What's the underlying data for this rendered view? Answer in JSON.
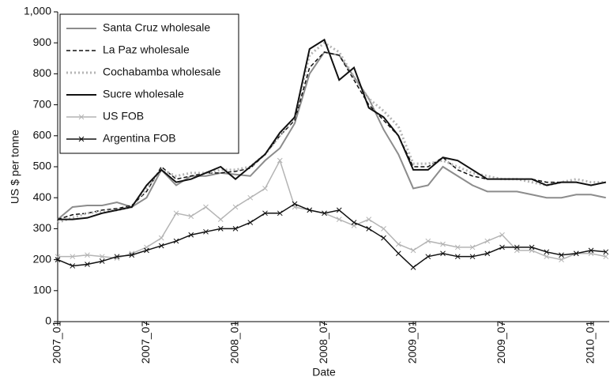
{
  "chart_data": {
    "type": "line",
    "x_label": "Date",
    "y_label": "US $ per tonne",
    "categories": [
      "2007_01",
      null,
      null,
      null,
      null,
      null,
      "2007_07",
      null,
      null,
      null,
      null,
      null,
      "2008_01",
      null,
      null,
      null,
      null,
      null,
      "2008_07",
      null,
      null,
      null,
      null,
      null,
      "2009_01",
      null,
      null,
      null,
      null,
      null,
      "2009_07",
      null,
      null,
      null,
      null,
      null,
      "2010_01",
      null
    ],
    "ylim": [
      0,
      1000
    ],
    "yticks": [
      0,
      100,
      200,
      300,
      400,
      500,
      600,
      700,
      800,
      900,
      {
        "value": 1000,
        "label": "1,000"
      }
    ],
    "legend": "top-left",
    "series": [
      {
        "name": "Santa Cruz wholesale",
        "color": "#8c8c8c",
        "dash": "solid",
        "width": 2,
        "values": [
          330,
          370,
          375,
          375,
          385,
          370,
          400,
          490,
          440,
          470,
          470,
          480,
          475,
          470,
          520,
          560,
          640,
          800,
          870,
          860,
          790,
          720,
          620,
          540,
          430,
          440,
          500,
          470,
          440,
          420,
          420,
          420,
          410,
          400,
          400,
          410,
          410,
          400
        ]
      },
      {
        "name": "La Paz wholesale",
        "color": "#111111",
        "dash": "dashed",
        "width": 1.5,
        "values": [
          330,
          345,
          350,
          360,
          365,
          375,
          420,
          500,
          460,
          470,
          480,
          480,
          485,
          495,
          540,
          600,
          650,
          820,
          870,
          860,
          780,
          700,
          650,
          600,
          500,
          500,
          530,
          490,
          470,
          460,
          460,
          460,
          460,
          450,
          450,
          450,
          440,
          450
        ]
      },
      {
        "name": "Cochabamba wholesale",
        "color": "#b4b4b4",
        "dash": "dotted",
        "width": 3,
        "values": [
          320,
          335,
          350,
          355,
          360,
          370,
          430,
          490,
          470,
          480,
          480,
          490,
          490,
          500,
          540,
          600,
          660,
          860,
          900,
          870,
          790,
          720,
          680,
          630,
          510,
          510,
          520,
          500,
          480,
          470,
          460,
          460,
          450,
          440,
          450,
          460,
          450,
          450
        ]
      },
      {
        "name": "Sucre wholesale",
        "color": "#111111",
        "dash": "solid",
        "width": 2,
        "values": [
          330,
          330,
          335,
          350,
          360,
          370,
          440,
          490,
          450,
          460,
          480,
          500,
          460,
          500,
          540,
          610,
          660,
          880,
          910,
          780,
          820,
          690,
          660,
          600,
          490,
          490,
          530,
          520,
          490,
          460,
          460,
          460,
          460,
          440,
          450,
          450,
          440,
          450
        ]
      },
      {
        "name": "US FOB",
        "color": "#b4b4b4",
        "dash": "solid",
        "width": 1.5,
        "marker": "x",
        "values": [
          210,
          210,
          215,
          210,
          205,
          220,
          240,
          270,
          350,
          340,
          370,
          330,
          370,
          400,
          430,
          520,
          370,
          360,
          350,
          330,
          310,
          330,
          300,
          250,
          230,
          260,
          250,
          240,
          240,
          260,
          280,
          230,
          230,
          210,
          200,
          220,
          220,
          210
        ]
      },
      {
        "name": "Argentina FOB",
        "color": "#111111",
        "dash": "solid",
        "width": 1.5,
        "marker": "x",
        "values": [
          200,
          180,
          185,
          195,
          210,
          215,
          230,
          245,
          260,
          280,
          290,
          300,
          300,
          320,
          350,
          350,
          380,
          360,
          350,
          360,
          320,
          300,
          270,
          220,
          175,
          210,
          220,
          210,
          210,
          220,
          240,
          240,
          240,
          225,
          215,
          220,
          230,
          225
        ]
      }
    ]
  }
}
